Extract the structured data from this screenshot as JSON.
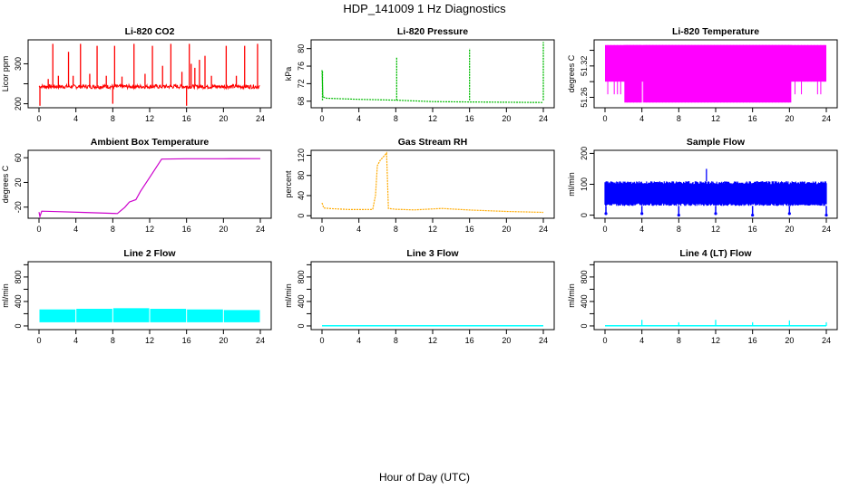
{
  "figure": {
    "title": "HDP_141009  1 Hz Diagnostics",
    "xlabel": "Hour of Day (UTC)"
  },
  "chart_data": [
    {
      "id": "co2",
      "type": "line",
      "title": "Li-820 CO2",
      "ylabel": "Licor ppm",
      "color": "#ff0000",
      "xlim": [
        0,
        24
      ],
      "ylim": [
        190,
        360
      ],
      "x_ticks": [
        0,
        4,
        8,
        12,
        16,
        20,
        24
      ],
      "y_ticks": [
        200,
        250,
        300
      ],
      "y_tick_labels": [
        "200",
        "",
        "300"
      ],
      "baseline": 243,
      "spikes": [
        {
          "x": 0.1,
          "y": 195
        },
        {
          "x": 1.0,
          "y": 262
        },
        {
          "x": 1.5,
          "y": 350
        },
        {
          "x": 2.1,
          "y": 270
        },
        {
          "x": 3.2,
          "y": 330
        },
        {
          "x": 3.7,
          "y": 270
        },
        {
          "x": 4.5,
          "y": 350
        },
        {
          "x": 5.5,
          "y": 275
        },
        {
          "x": 6.3,
          "y": 345
        },
        {
          "x": 7.3,
          "y": 270
        },
        {
          "x": 8.0,
          "y": 200
        },
        {
          "x": 8.2,
          "y": 345
        },
        {
          "x": 9.0,
          "y": 268
        },
        {
          "x": 10.3,
          "y": 350
        },
        {
          "x": 11.5,
          "y": 275
        },
        {
          "x": 12.3,
          "y": 345
        },
        {
          "x": 13.4,
          "y": 295
        },
        {
          "x": 14.3,
          "y": 350
        },
        {
          "x": 15.5,
          "y": 280
        },
        {
          "x": 16.0,
          "y": 195
        },
        {
          "x": 16.3,
          "y": 350
        },
        {
          "x": 16.5,
          "y": 300
        },
        {
          "x": 16.9,
          "y": 290
        },
        {
          "x": 17.4,
          "y": 310
        },
        {
          "x": 18.0,
          "y": 320
        },
        {
          "x": 18.7,
          "y": 270
        },
        {
          "x": 20.3,
          "y": 345
        },
        {
          "x": 21.4,
          "y": 270
        },
        {
          "x": 22.3,
          "y": 345
        },
        {
          "x": 23.7,
          "y": 350
        }
      ]
    },
    {
      "id": "pressure",
      "type": "line",
      "title": "Li-820 Pressure",
      "ylabel": "kPa",
      "color": "#00bb00",
      "xlim": [
        0,
        24
      ],
      "ylim": [
        66.5,
        82
      ],
      "x_ticks": [
        0,
        4,
        8,
        12,
        16,
        20,
        24
      ],
      "y_ticks": [
        68,
        72,
        76,
        80
      ],
      "y_tick_labels": [
        "68",
        "72",
        "76",
        "80"
      ],
      "points": [
        [
          0,
          75
        ],
        [
          0.1,
          69
        ],
        [
          0.5,
          68.6
        ],
        [
          4,
          68.4
        ],
        [
          8,
          68.2
        ],
        [
          12,
          68.0
        ],
        [
          16,
          67.9
        ],
        [
          20,
          67.8
        ],
        [
          24,
          67.7
        ]
      ],
      "spikes": [
        {
          "x": 0.05,
          "y": 75
        },
        {
          "x": 8.1,
          "y": 78
        },
        {
          "x": 16.0,
          "y": 80
        },
        {
          "x": 24.0,
          "y": 81.5
        }
      ]
    },
    {
      "id": "temperature",
      "type": "line",
      "title": "Li-820 Temperature",
      "ylabel": "degrees C",
      "color": "#ff00ff",
      "xlim": [
        0,
        24
      ],
      "ylim": [
        51.24,
        51.37
      ],
      "x_ticks": [
        0,
        4,
        8,
        12,
        16,
        20,
        24
      ],
      "y_ticks": [
        51.26,
        51.29,
        51.32,
        51.35
      ],
      "y_tick_labels": [
        "51.26",
        "",
        "51.32",
        ""
      ],
      "band_high": [
        51.29,
        51.36
      ],
      "band_full": [
        51.25,
        51.36
      ],
      "full_band_x": [
        [
          1.8,
          4.0
        ],
        [
          4.0,
          20.2
        ]
      ]
    },
    {
      "id": "ambient",
      "type": "line",
      "title": "Ambient Box Temperature",
      "ylabel": "degrees C",
      "color": "#cc00cc",
      "xlim": [
        0,
        24
      ],
      "ylim": [
        -38,
        72
      ],
      "x_ticks": [
        0,
        4,
        8,
        12,
        16,
        20,
        24
      ],
      "y_ticks": [
        -20,
        20,
        60
      ],
      "y_tick_labels": [
        "-20",
        "20",
        "60"
      ],
      "points": [
        [
          0,
          -28
        ],
        [
          0.1,
          -35
        ],
        [
          0.3,
          -27
        ],
        [
          2,
          -28
        ],
        [
          5,
          -29
        ],
        [
          8.5,
          -30
        ],
        [
          9.3,
          -20
        ],
        [
          9.8,
          -12
        ],
        [
          10.5,
          -8
        ],
        [
          11,
          5
        ],
        [
          12,
          28
        ],
        [
          13.3,
          58
        ],
        [
          16,
          58
        ],
        [
          20,
          58
        ],
        [
          24,
          58
        ]
      ]
    },
    {
      "id": "rh",
      "type": "line",
      "title": "Gas Stream RH",
      "ylabel": "percent",
      "color": "#ffaa00",
      "xlim": [
        0,
        24
      ],
      "ylim": [
        -5,
        130
      ],
      "x_ticks": [
        0,
        4,
        8,
        12,
        16,
        20,
        24
      ],
      "y_ticks": [
        0,
        40,
        80,
        120
      ],
      "y_tick_labels": [
        "0",
        "40",
        "80",
        "120"
      ],
      "points": [
        [
          0,
          25
        ],
        [
          0.2,
          15
        ],
        [
          1,
          14
        ],
        [
          3,
          13
        ],
        [
          5.5,
          12
        ],
        [
          5.8,
          40
        ],
        [
          6.0,
          100
        ],
        [
          6.3,
          110
        ],
        [
          6.8,
          120
        ],
        [
          7.0,
          125
        ],
        [
          7.2,
          15
        ],
        [
          8,
          13
        ],
        [
          10,
          12
        ],
        [
          12,
          14
        ],
        [
          13,
          15
        ],
        [
          16,
          12
        ],
        [
          20,
          9
        ],
        [
          24,
          7
        ]
      ]
    },
    {
      "id": "sample_flow",
      "type": "line",
      "title": "Sample Flow",
      "ylabel": "ml/min",
      "color": "#0000ff",
      "xlim": [
        0,
        24
      ],
      "ylim": [
        -10,
        210
      ],
      "x_ticks": [
        0,
        4,
        8,
        12,
        16,
        20,
        24
      ],
      "y_ticks": [
        0,
        100,
        200
      ],
      "y_tick_labels": [
        "0",
        "100",
        "200"
      ],
      "band": [
        30,
        110
      ],
      "spikes": [
        {
          "x": 11.0,
          "y": 150
        }
      ],
      "dips": [
        {
          "x": 0.1,
          "y": 5
        },
        {
          "x": 4.0,
          "y": 5
        },
        {
          "x": 8.0,
          "y": 0
        },
        {
          "x": 12.0,
          "y": 5
        },
        {
          "x": 16.0,
          "y": 0
        },
        {
          "x": 20.0,
          "y": 5
        },
        {
          "x": 24.0,
          "y": 0
        }
      ]
    },
    {
      "id": "line2",
      "type": "line",
      "title": "Line 2 Flow",
      "ylabel": "ml/min",
      "color": "#00ffff",
      "xlim": [
        0,
        24
      ],
      "ylim": [
        -60,
        1050
      ],
      "x_ticks": [
        0,
        4,
        8,
        12,
        16,
        20,
        24
      ],
      "y_ticks": [
        0,
        200,
        400,
        600,
        800,
        1000
      ],
      "y_tick_labels": [
        "0",
        "",
        "400",
        "",
        "800",
        ""
      ],
      "band": [
        60,
        260
      ],
      "segments": [
        [
          0,
          4,
          270
        ],
        [
          4,
          8,
          280
        ],
        [
          8,
          12,
          290
        ],
        [
          12,
          16,
          280
        ],
        [
          16,
          20,
          270
        ],
        [
          20,
          24,
          260
        ]
      ]
    },
    {
      "id": "line3",
      "type": "line",
      "title": "Line 3 Flow",
      "ylabel": "ml/min",
      "color": "#00ffff",
      "xlim": [
        0,
        24
      ],
      "ylim": [
        -60,
        1050
      ],
      "x_ticks": [
        0,
        4,
        8,
        12,
        16,
        20,
        24
      ],
      "y_ticks": [
        0,
        200,
        400,
        600,
        800,
        1000
      ],
      "y_tick_labels": [
        "0",
        "",
        "400",
        "",
        "800",
        ""
      ],
      "points": [
        [
          0,
          2
        ],
        [
          24,
          2
        ]
      ]
    },
    {
      "id": "line4",
      "type": "line",
      "title": "Line 4 (LT) Flow",
      "ylabel": "ml/min",
      "color": "#00ffff",
      "xlim": [
        0,
        24
      ],
      "ylim": [
        -60,
        1050
      ],
      "x_ticks": [
        0,
        4,
        8,
        12,
        16,
        20,
        24
      ],
      "y_ticks": [
        0,
        200,
        400,
        600,
        800,
        1000
      ],
      "y_tick_labels": [
        "0",
        "",
        "400",
        "",
        "800",
        ""
      ],
      "points": [
        [
          0,
          2
        ],
        [
          24,
          2
        ]
      ],
      "spikes": [
        {
          "x": 4.0,
          "y": 100
        },
        {
          "x": 8.0,
          "y": 60
        },
        {
          "x": 12.0,
          "y": 100
        },
        {
          "x": 16.0,
          "y": 60
        },
        {
          "x": 20.0,
          "y": 90
        },
        {
          "x": 24.0,
          "y": 60
        }
      ]
    }
  ]
}
